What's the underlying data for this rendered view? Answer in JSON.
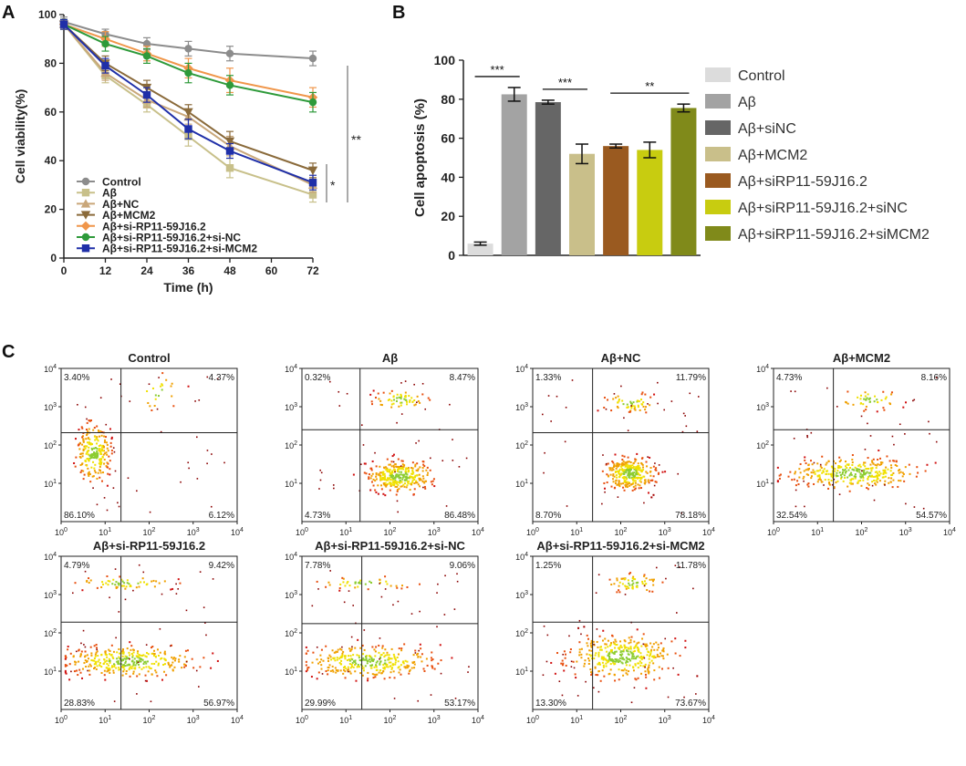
{
  "panel_a": {
    "letter": "A",
    "ylabel": "Cell viability(%)",
    "xlabel": "Time (h)",
    "x_ticks": [
      "0",
      "12",
      "24",
      "36",
      "48",
      "60",
      "72"
    ],
    "y_ticks": [
      "0",
      "20",
      "40",
      "60",
      "80",
      "100"
    ],
    "sig_long": "**",
    "sig_short": "*"
  },
  "panel_b": {
    "letter": "B",
    "ylabel": "Cell apoptosis (%)",
    "y_ticks": [
      "0",
      "20",
      "40",
      "60",
      "80",
      "100"
    ],
    "sig": [
      "***",
      "***",
      "**"
    ]
  },
  "panel_c": {
    "letter": "C",
    "x_ticks": [
      "10^0",
      "10^1",
      "10^2",
      "10^3",
      "10^4"
    ],
    "y_ticks": [
      "10^1",
      "10^2",
      "10^3",
      "10^4"
    ]
  },
  "chart_data": [
    {
      "type": "line",
      "title": "",
      "xlabel": "Time (h)",
      "ylabel": "Cell viability(%)",
      "xlim": [
        0,
        72
      ],
      "ylim": [
        0,
        100
      ],
      "x": [
        0,
        12,
        24,
        36,
        48,
        72
      ],
      "series": [
        {
          "name": "Control",
          "color": "#8c8c8c",
          "marker": "circle",
          "values": [
            97,
            92,
            88,
            86,
            84,
            82
          ],
          "errors": [
            2,
            2,
            2.5,
            3,
            3,
            3
          ]
        },
        {
          "name": "Aβ",
          "color": "#c8c08a",
          "marker": "square",
          "values": [
            96,
            75,
            63,
            50,
            37,
            26
          ],
          "errors": [
            2,
            3,
            3,
            4,
            4,
            3
          ]
        },
        {
          "name": "Aβ+NC",
          "color": "#c9a77a",
          "marker": "triangle-up",
          "values": [
            96,
            76,
            65,
            58,
            46,
            30
          ],
          "errors": [
            2,
            3,
            3,
            3,
            4,
            3
          ]
        },
        {
          "name": "Aβ+MCM2",
          "color": "#8a6a3a",
          "marker": "triangle-down",
          "values": [
            96,
            80,
            70,
            60,
            48,
            36
          ],
          "errors": [
            2,
            3,
            3,
            3,
            4,
            3
          ]
        },
        {
          "name": "Aβ+si-RP11-59J16.2",
          "color": "#f0964a",
          "marker": "diamond",
          "values": [
            96,
            90,
            84,
            78,
            73,
            66
          ],
          "errors": [
            2,
            3,
            3,
            4,
            5,
            4
          ]
        },
        {
          "name": "Aβ+si-RP11-59J16.2+si-NC",
          "color": "#2e9a3a",
          "marker": "circle",
          "values": [
            96,
            88,
            83,
            76,
            71,
            64
          ],
          "errors": [
            2,
            3,
            3,
            4,
            4,
            4
          ]
        },
        {
          "name": "Aβ+si-RP11-59J16.2+si-MCM2",
          "color": "#1f2fa8",
          "marker": "square",
          "values": [
            96,
            79,
            67,
            53,
            44,
            31
          ],
          "errors": [
            2,
            3,
            3,
            4,
            3,
            3
          ]
        }
      ]
    },
    {
      "type": "bar",
      "title": "",
      "xlabel": "",
      "ylabel": "Cell apoptosis (%)",
      "ylim": [
        0,
        100
      ],
      "categories": [
        "Control",
        "Aβ",
        "Aβ+siNC",
        "Aβ+MCM2",
        "Aβ+siRP11-59J16.2",
        "Aβ+siRP11-59J16.2+siNC",
        "Aβ+siRP11-59J16.2+siMCM2"
      ],
      "values": [
        6,
        82.5,
        78.5,
        52,
        56,
        54,
        75.5
      ],
      "errors": [
        0.8,
        3.5,
        1,
        5,
        1,
        4,
        2
      ],
      "colors": [
        "#dcdcdc",
        "#a3a3a3",
        "#666666",
        "#c9bf8a",
        "#9a5a20",
        "#c8cc10",
        "#808a1a"
      ],
      "significance": [
        {
          "from": 0,
          "to": 1,
          "label": "***"
        },
        {
          "from": 2,
          "to": 3,
          "label": "***"
        },
        {
          "from": 4,
          "to": 6,
          "label": "**"
        }
      ]
    },
    {
      "type": "scatter",
      "title": "Flow cytometry quadrant plots",
      "axis_scale": "log",
      "xlim": [
        1,
        10000
      ],
      "ylim": [
        1,
        10000
      ],
      "panels": [
        {
          "title": "Control",
          "q_ul": "3.40%",
          "q_ur": "4.37%",
          "q_ll": "86.10%",
          "q_lr": "6.12%"
        },
        {
          "title": "Aβ",
          "q_ul": "0.32%",
          "q_ur": "8.47%",
          "q_ll": "4.73%",
          "q_lr": "86.48%"
        },
        {
          "title": "Aβ+NC",
          "q_ul": "1.33%",
          "q_ur": "11.79%",
          "q_ll": "8.70%",
          "q_lr": "78.18%"
        },
        {
          "title": "Aβ+MCM2",
          "q_ul": "4.73%",
          "q_ur": "8.16%",
          "q_ll": "32.54%",
          "q_lr": "54.57%"
        },
        {
          "title": "Aβ+si-RP11-59J16.2",
          "q_ul": "4.79%",
          "q_ur": "9.42%",
          "q_ll": "28.83%",
          "q_lr": "56.97%"
        },
        {
          "title": "Aβ+si-RP11-59J16.2+si-NC",
          "q_ul": "7.78%",
          "q_ur": "9.06%",
          "q_ll": "29.99%",
          "q_lr": "53.17%"
        },
        {
          "title": "Aβ+si-RP11-59J16.2+si-MCM2",
          "q_ul": "1.25%",
          "q_ur": "11.78%",
          "q_ll": "13.30%",
          "q_lr": "73.67%"
        }
      ]
    }
  ]
}
